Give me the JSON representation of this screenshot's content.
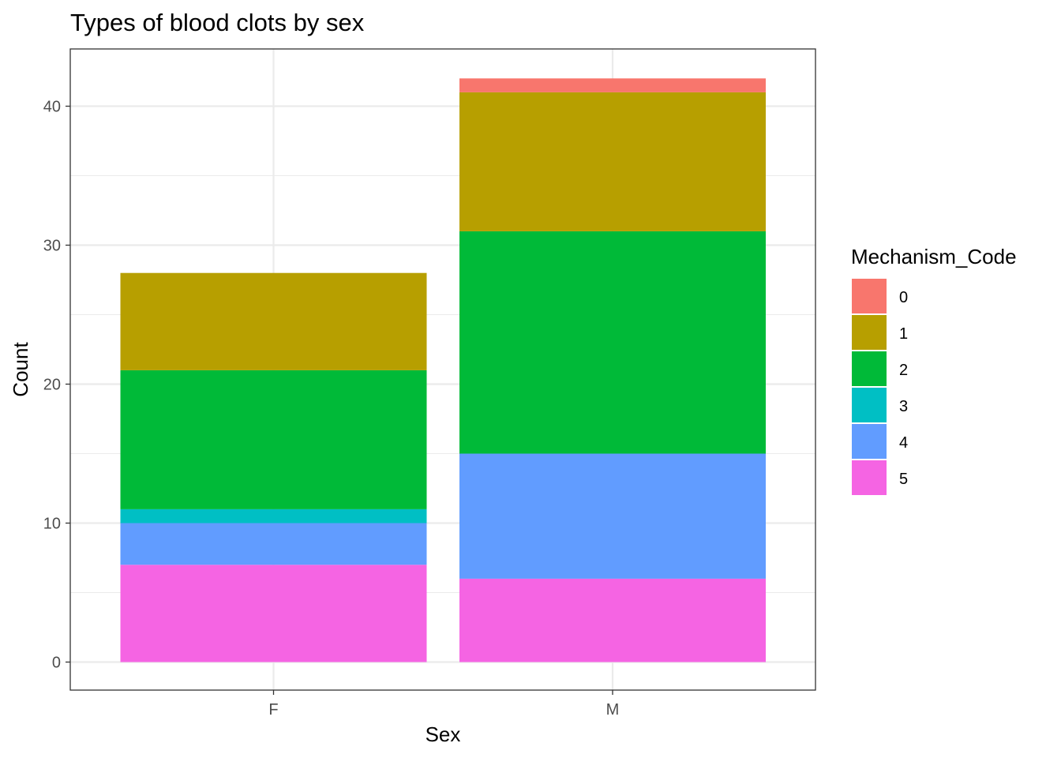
{
  "chart_data": {
    "type": "bar",
    "stacked": true,
    "title": "Types of blood clots by sex",
    "xlabel": "Sex",
    "ylabel": "Count",
    "categories": [
      "F",
      "M"
    ],
    "ylim": [
      0,
      44
    ],
    "yticks": [
      0,
      10,
      20,
      30,
      40
    ],
    "grid": true,
    "legend_title": "Mechanism_Code",
    "legend_position": "right",
    "stack_order_bottom_to_top": [
      "5",
      "4",
      "3",
      "2",
      "1",
      "0"
    ],
    "series": [
      {
        "name": "0",
        "color": "#F8766D",
        "values": [
          0,
          1
        ]
      },
      {
        "name": "1",
        "color": "#B79F00",
        "values": [
          7,
          10
        ]
      },
      {
        "name": "2",
        "color": "#00BA38",
        "values": [
          10,
          16
        ]
      },
      {
        "name": "3",
        "color": "#00BFC4",
        "values": [
          1,
          0
        ]
      },
      {
        "name": "4",
        "color": "#619CFF",
        "values": [
          3,
          9
        ]
      },
      {
        "name": "5",
        "color": "#F564E3",
        "values": [
          7,
          6
        ]
      }
    ]
  }
}
